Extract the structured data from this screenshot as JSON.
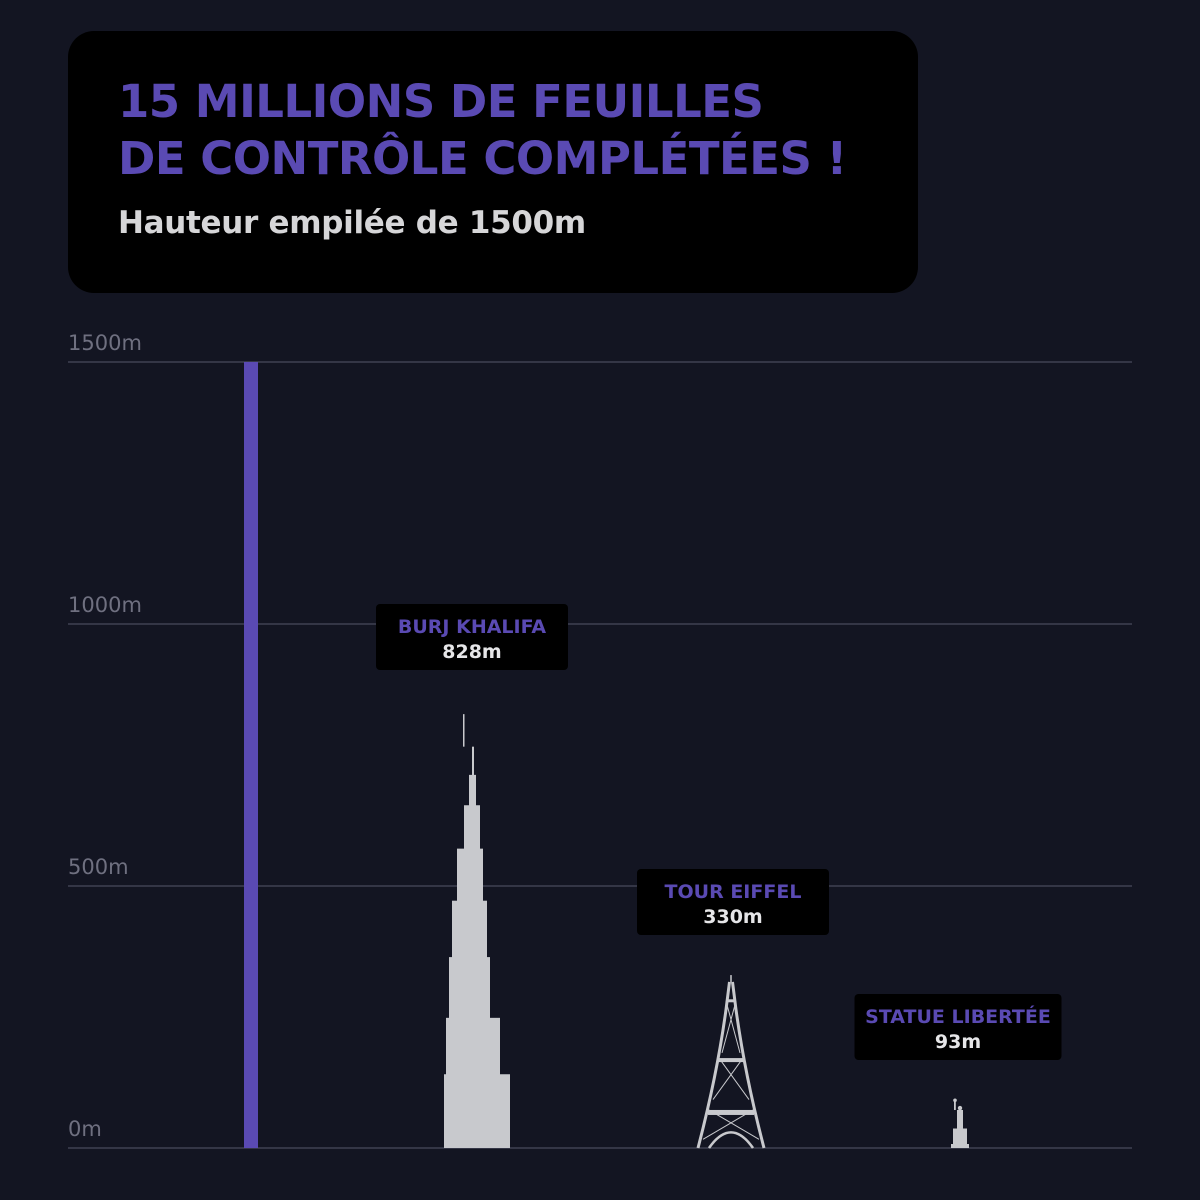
{
  "header": {
    "title_line1": "15 MILLIONS DE FEUILLES",
    "title_line2": "DE CONTRÔLE COMPLÉTÉES !",
    "subtitle": "Hauteur empilée de 1500m"
  },
  "colors": {
    "background": "#131522",
    "accent": "#5a4ab3",
    "silhouette": "#c8c9cd",
    "gridline": "#55576a",
    "tick_text": "#6f7080",
    "label_box": "#000000",
    "value_text": "#e6e6e8"
  },
  "chart_data": {
    "type": "bar",
    "ylim": [
      0,
      1500
    ],
    "yticks": [
      {
        "value": 0,
        "label": "0m"
      },
      {
        "value": 500,
        "label": "500m"
      },
      {
        "value": 1000,
        "label": "1000m"
      },
      {
        "value": 1500,
        "label": "1500m"
      }
    ],
    "grid": true,
    "series": [
      {
        "value": 1500,
        "shape": "stack-bar"
      },
      {
        "name": "BURJ KHALIFA",
        "value_label": "828m",
        "value": 828,
        "shape": "burj-khalifa-icon"
      },
      {
        "name": "TOUR EIFFEL",
        "value_label": "330m",
        "value": 330,
        "shape": "eiffel-tower-icon"
      },
      {
        "name": "STATUE LIBERTÉE",
        "value_label": "93m",
        "value": 93,
        "shape": "statue-of-liberty-icon"
      }
    ]
  }
}
